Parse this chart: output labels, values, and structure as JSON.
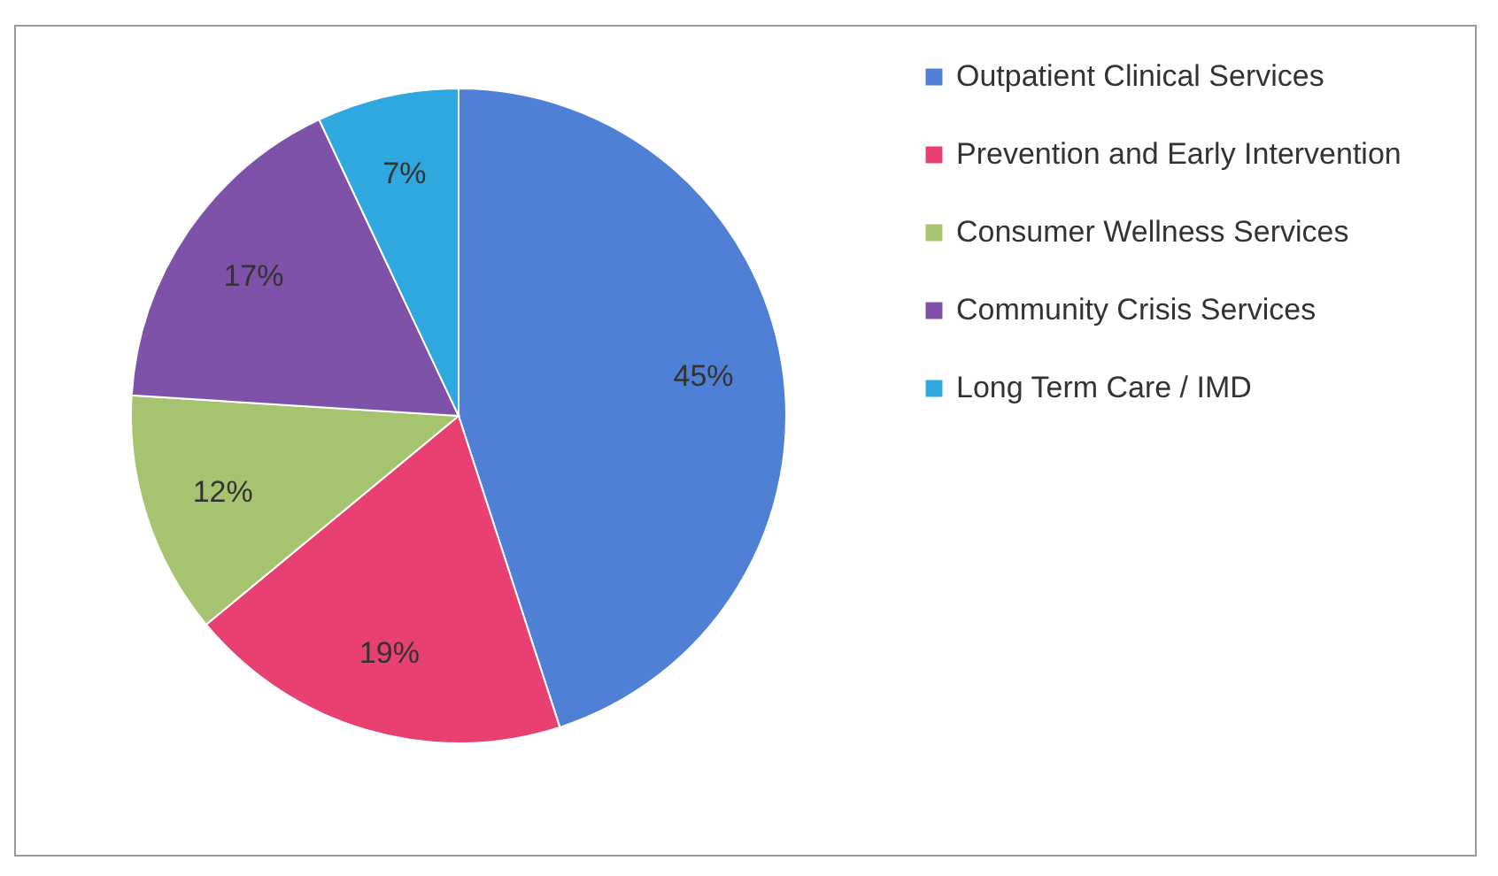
{
  "chart_data": {
    "type": "pie",
    "categories": [
      "Outpatient Clinical Services",
      "Prevention and Early Intervention",
      "Consumer Wellness Services",
      "Community Crisis Services",
      "Long Term Care / IMD"
    ],
    "values": [
      45,
      19,
      12,
      17,
      7
    ],
    "colors": [
      "#4f80d6",
      "#e84070",
      "#a6c46f",
      "#7e52a8",
      "#2fa8df"
    ],
    "value_labels": [
      "45%",
      "19%",
      "12%",
      "17%",
      "7%"
    ],
    "legend": "right"
  }
}
